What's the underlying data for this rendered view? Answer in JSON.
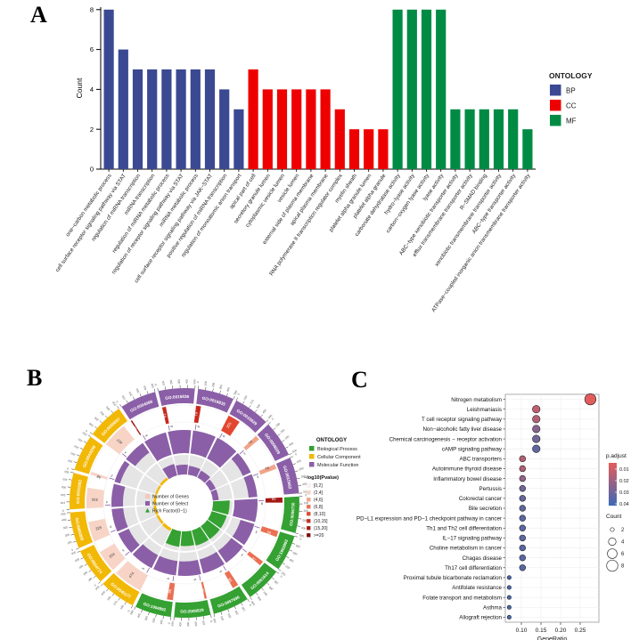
{
  "panels": {
    "a": "A",
    "b": "B",
    "c": "C"
  },
  "chart_data": [
    {
      "id": "go_barplot",
      "type": "bar",
      "panel": "A",
      "ylabel": "Count",
      "ylim": [
        0,
        8
      ],
      "yticks": [
        0,
        2,
        4,
        6,
        8
      ],
      "legend": {
        "title": "ONTOLOGY",
        "entries": [
          {
            "label": "BP",
            "color": "#3B4992"
          },
          {
            "label": "CC",
            "color": "#EE0000"
          },
          {
            "label": "MF",
            "color": "#008B45"
          }
        ]
      },
      "categories": [
        "one−carbon metabolic process",
        "cell surface receptor signaling pathway via STAT",
        "regulation of miRNA transcription",
        "miRNA transcription",
        "regulation of miRNA metabolic process",
        "regulation of receptor signaling pathway via STAT",
        "miRNA metabolic process",
        "cell surface receptor signaling pathway via JAK−STAT",
        "positive regulation of miRNA transcription",
        "regulation of monoatomic anion transport",
        "apical part of cell",
        "secretory granule lumen",
        "cytoplasmic vesicle lumen",
        "vesicle lumen",
        "external side of plasma membrane",
        "apical plasma membrane",
        "RNA polymerase II transcription regulator complex",
        "myelin sheath",
        "platelet alpha granule lumen",
        "platelet alpha granule",
        "carbonate dehydratase activity",
        "hydro−lyase activity",
        "carbon−oxygen lyase activity",
        "lyase activity",
        "ABC−type xenobiotic transporter activity",
        "efflux transmembrane transporter activity",
        "R−SMAD binding",
        "xenobiotic transmembrane transporter activity",
        "ABC−type transporter activity",
        "ATPase−coupled inorganic anion transmembrane transporter activity"
      ],
      "values": [
        8,
        6,
        5,
        5,
        5,
        5,
        5,
        5,
        4,
        3,
        5,
        4,
        4,
        4,
        4,
        4,
        3,
        2,
        2,
        2,
        8,
        8,
        8,
        8,
        3,
        3,
        3,
        3,
        3,
        2
      ],
      "groups": [
        "BP",
        "BP",
        "BP",
        "BP",
        "BP",
        "BP",
        "BP",
        "BP",
        "BP",
        "BP",
        "CC",
        "CC",
        "CC",
        "CC",
        "CC",
        "CC",
        "CC",
        "CC",
        "CC",
        "CC",
        "MF",
        "MF",
        "MF",
        "MF",
        "MF",
        "MF",
        "MF",
        "MF",
        "MF",
        "MF"
      ]
    },
    {
      "id": "go_circle",
      "type": "circular_enrichment",
      "panel": "B",
      "scale_max": 500,
      "tick_values": [
        0,
        100,
        200,
        300,
        400,
        500
      ],
      "center_legend": [
        {
          "label": "Number of Genes",
          "color": "#F5C8BC",
          "marker": "square"
        },
        {
          "label": "Number of Select",
          "color": "#8B5FA7",
          "marker": "square"
        },
        {
          "label": "Rich Factor(0−1)",
          "color": "#2FA12F",
          "marker": "triangle"
        }
      ],
      "ontology_legend": {
        "title": "ONTOLOGY",
        "entries": [
          {
            "label": "Biological Process",
            "color": "#34A132"
          },
          {
            "label": "Cellular Component",
            "color": "#F2B806"
          },
          {
            "label": "Molecular Function",
            "color": "#8B5FA7"
          }
        ]
      },
      "pvalue_legend": {
        "title": "−log10(Pvalue)",
        "bins": [
          {
            "label": "[0,2]",
            "color": "#FDF4F0"
          },
          {
            "label": "(2,4]",
            "color": "#F7D4C6"
          },
          {
            "label": "(4,6]",
            "color": "#F2A488"
          },
          {
            "label": "(6,8]",
            "color": "#EA7052"
          },
          {
            "label": "(8,10]",
            "color": "#E2462E"
          },
          {
            "label": "(10,15]",
            "color": "#C92A1D"
          },
          {
            "label": "(15,20]",
            "color": "#A41712"
          },
          {
            "label": ">=20",
            "color": "#7D0A08"
          }
        ]
      },
      "segments": [
        {
          "id": "GO:0004089",
          "ontology": "Molecular Function",
          "genes": 15,
          "select": 8,
          "pbin": 6,
          "rich": 0.6
        },
        {
          "id": "GO:0016836",
          "ontology": "Molecular Function",
          "genes": 61,
          "select": 8,
          "pbin": 5,
          "rich": 0.5
        },
        {
          "id": "GO:0016835",
          "ontology": "Molecular Function",
          "genes": 79,
          "select": 8,
          "pbin": 5,
          "rich": 0.45
        },
        {
          "id": "GO:0016829",
          "ontology": "Molecular Function",
          "genes": 201,
          "select": 8,
          "pbin": 4,
          "rich": 0.4
        },
        {
          "id": "GO:0008509",
          "ontology": "Molecular Function",
          "genes": 74,
          "select": 3,
          "pbin": 2,
          "rich": 0.3
        },
        {
          "id": "GO:0015562",
          "ontology": "Molecular Function",
          "genes": 76,
          "select": 3,
          "pbin": 2,
          "rich": 0.3
        },
        {
          "id": "GO:0006730",
          "ontology": "Biological Process",
          "genes": 81,
          "select": 8,
          "pbin": 6,
          "rich": 0.85
        },
        {
          "id": "GO:1902893",
          "ontology": "Biological Process",
          "genes": 96,
          "select": 5,
          "pbin": 3,
          "rich": 0.8
        },
        {
          "id": "GO:0061614",
          "ontology": "Biological Process",
          "genes": 74,
          "select": 5,
          "pbin": 3,
          "rich": 0.8
        },
        {
          "id": "GO:0097696",
          "ontology": "Biological Process",
          "genes": 98,
          "select": 5,
          "pbin": 3,
          "rich": 0.8
        },
        {
          "id": "GO:2000629",
          "ontology": "Biological Process",
          "genes": 36,
          "select": 5,
          "pbin": 3,
          "rich": 0.75
        },
        {
          "id": "GO:1904892",
          "ontology": "Biological Process",
          "genes": 96,
          "select": 5,
          "pbin": 3,
          "rich": 0.8
        },
        {
          "id": "GO:0045177",
          "ontology": "Cellular Component",
          "genes": 474,
          "select": 5,
          "pbin": 1,
          "rich": 0.15
        },
        {
          "id": "GO:0034774",
          "ontology": "Cellular Component",
          "genes": 354,
          "select": 4,
          "pbin": 1,
          "rich": 0.12
        },
        {
          "id": "GO:0060205",
          "ontology": "Cellular Component",
          "genes": 325,
          "select": 4,
          "pbin": 1,
          "rich": 0.12
        },
        {
          "id": "GO:0031983",
          "ontology": "Cellular Component",
          "genes": 330,
          "select": 4,
          "pbin": 1,
          "rich": 0.12
        },
        {
          "id": "GO:0043209",
          "ontology": "Cellular Component",
          "genes": 48,
          "select": 2,
          "pbin": 1,
          "rich": 0.1
        },
        {
          "id": "GO:0009897",
          "ontology": "Cellular Component",
          "genes": 407,
          "select": 4,
          "pbin": 1,
          "rich": 0.12
        }
      ]
    },
    {
      "id": "kegg_dotplot",
      "type": "scatter",
      "panel": "C",
      "xlabel": "GeneRatio",
      "xticks": [
        0.1,
        0.15,
        0.2,
        0.25
      ],
      "xlim": [
        0.059,
        0.298
      ],
      "color_legend": {
        "title": "p.adjust",
        "ticks": [
          0.01,
          0.02,
          0.03,
          0.04
        ],
        "high_color": "#E25C5C",
        "low_color": "#3E69B4"
      },
      "size_legend": {
        "title": "Count",
        "sizes": [
          2,
          4,
          6,
          8
        ]
      },
      "pathways": [
        {
          "name": "Nitrogen metabolism",
          "ratio": 0.276,
          "count": 8,
          "padj": 0.004
        },
        {
          "name": "Leishmaniasis",
          "ratio": 0.138,
          "count": 4,
          "padj": 0.012
        },
        {
          "name": "T cell receptor signaling pathway",
          "ratio": 0.138,
          "count": 4,
          "padj": 0.015
        },
        {
          "name": "Non−alcoholic fatty liver disease",
          "ratio": 0.138,
          "count": 4,
          "padj": 0.025
        },
        {
          "name": "Chemical carcinogenesis − receptor activation",
          "ratio": 0.138,
          "count": 4,
          "padj": 0.03
        },
        {
          "name": "cAMP signaling pathway",
          "ratio": 0.138,
          "count": 4,
          "padj": 0.034
        },
        {
          "name": "ABC transporters",
          "ratio": 0.103,
          "count": 3,
          "padj": 0.014
        },
        {
          "name": "Autoimmune thyroid disease",
          "ratio": 0.103,
          "count": 3,
          "padj": 0.015
        },
        {
          "name": "Inflammatory bowel disease",
          "ratio": 0.103,
          "count": 3,
          "padj": 0.022
        },
        {
          "name": "Pertussis",
          "ratio": 0.103,
          "count": 3,
          "padj": 0.03
        },
        {
          "name": "Colorectal cancer",
          "ratio": 0.103,
          "count": 3,
          "padj": 0.033
        },
        {
          "name": "Bile secretion",
          "ratio": 0.103,
          "count": 3,
          "padj": 0.034
        },
        {
          "name": "PD−L1 expression and PD−1 checkpoint pathway in cancer",
          "ratio": 0.103,
          "count": 3,
          "padj": 0.035
        },
        {
          "name": "Th1 and Th2 cell differentiation",
          "ratio": 0.103,
          "count": 3,
          "padj": 0.035
        },
        {
          "name": "IL−17 signaling pathway",
          "ratio": 0.103,
          "count": 3,
          "padj": 0.035
        },
        {
          "name": "Choline metabolism in cancer",
          "ratio": 0.103,
          "count": 3,
          "padj": 0.036
        },
        {
          "name": "Chagas disease",
          "ratio": 0.103,
          "count": 3,
          "padj": 0.036
        },
        {
          "name": "Th17 cell differentiation",
          "ratio": 0.103,
          "count": 3,
          "padj": 0.036
        },
        {
          "name": "Proximal tubule bicarbonate reclamation",
          "ratio": 0.069,
          "count": 2,
          "padj": 0.04
        },
        {
          "name": "Antifolate resistance",
          "ratio": 0.069,
          "count": 2,
          "padj": 0.04
        },
        {
          "name": "Folate transport and metabolism",
          "ratio": 0.069,
          "count": 2,
          "padj": 0.04
        },
        {
          "name": "Asthma",
          "ratio": 0.069,
          "count": 2,
          "padj": 0.04
        },
        {
          "name": "Allograft rejection",
          "ratio": 0.069,
          "count": 2,
          "padj": 0.04
        }
      ]
    }
  ]
}
